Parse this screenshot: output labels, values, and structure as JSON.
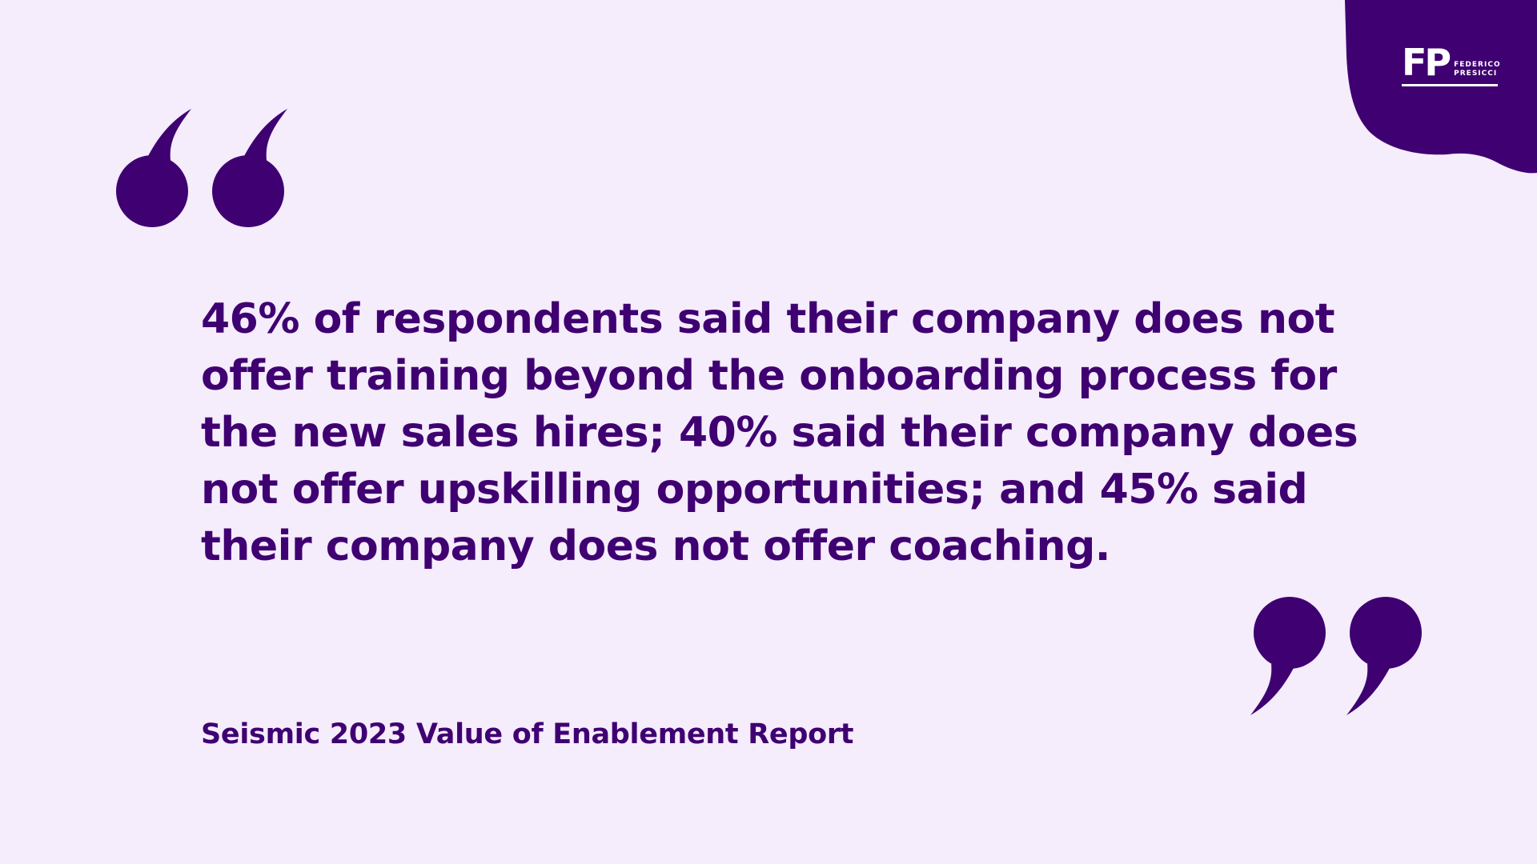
{
  "colors": {
    "background": "#f5ecfc",
    "accent": "#3f0071",
    "logo_text": "#ffffff"
  },
  "logo": {
    "mark": "FP",
    "name_line1": "FEDERICO",
    "name_line2": "PRESICCI"
  },
  "quote": {
    "open_icon": "open-quote-icon",
    "close_icon": "close-quote-icon",
    "text": "46% of respondents said their company does not offer training beyond the onboarding process for the new sales hires; 40% said their company does not offer upskilling opportunities; and 45% said their company does not offer coaching.",
    "source": "Seismic 2023 Value of Enablement Report"
  }
}
